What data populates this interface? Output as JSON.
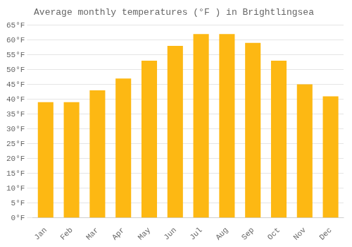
{
  "chart_data": {
    "type": "bar",
    "title": "Average monthly temperatures (°F ) in Brightlingsea",
    "categories": [
      "Jan",
      "Feb",
      "Mar",
      "Apr",
      "May",
      "Jun",
      "Jul",
      "Aug",
      "Sep",
      "Oct",
      "Nov",
      "Dec"
    ],
    "values": [
      39,
      39,
      43,
      47,
      53,
      58,
      62,
      62,
      59,
      53,
      45,
      41
    ],
    "color": "#FDB813",
    "ylim": [
      0,
      65
    ],
    "yticks": [
      {
        "value": 0,
        "label": "0°F"
      },
      {
        "value": 5,
        "label": "5°F"
      },
      {
        "value": 10,
        "label": "10°F"
      },
      {
        "value": 15,
        "label": "15°F"
      },
      {
        "value": 20,
        "label": "20°F"
      },
      {
        "value": 25,
        "label": "25°F"
      },
      {
        "value": 30,
        "label": "30°F"
      },
      {
        "value": 35,
        "label": "35°F"
      },
      {
        "value": 40,
        "label": "40°F"
      },
      {
        "value": 45,
        "label": "45°F"
      },
      {
        "value": 50,
        "label": "50°F"
      },
      {
        "value": 55,
        "label": "55°F"
      },
      {
        "value": 60,
        "label": "60°F"
      },
      {
        "value": 65,
        "label": "65°F"
      }
    ],
    "grid": true
  }
}
